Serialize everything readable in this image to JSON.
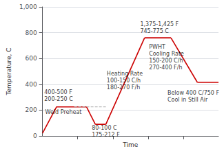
{
  "chart_data": {
    "type": "line",
    "xlabel": "Time",
    "ylabel": "Temperature, C",
    "xlim": [
      0,
      10
    ],
    "xticks": [
      2.0,
      4.0,
      6.0,
      8.0
    ],
    "ylim": [
      0,
      1000
    ],
    "yticks": [
      0,
      200,
      400,
      600,
      800,
      {
        "value": 1000,
        "label": "1,000"
      }
    ],
    "tick_labels": "y",
    "grid": true,
    "series": [
      {
        "color": "#cc0000",
        "x": [
          0,
          0.8,
          1.8,
          2.5
        ],
        "values": [
          20,
          225,
          225,
          225
        ]
      },
      {
        "color": "#cc0000",
        "x": [
          2.5,
          3.0
        ],
        "values": [
          225,
          90
        ]
      },
      {
        "color": "#cc0000",
        "x": [
          3.0,
          3.6
        ],
        "values": [
          90,
          90
        ]
      },
      {
        "color": "#cc0000",
        "x": [
          3.6,
          5.8
        ],
        "values": [
          90,
          760
        ]
      },
      {
        "color": "#cc0000",
        "x": [
          5.8,
          7.3
        ],
        "values": [
          760,
          760
        ]
      },
      {
        "color": "#cc0000",
        "x": [
          7.3,
          8.8
        ],
        "values": [
          760,
          415
        ]
      },
      {
        "color": "#cc0000",
        "x": [
          8.8,
          10.0
        ],
        "values": [
          415,
          415
        ]
      },
      {
        "color": "#aaaaaa",
        "line_style": "dashed",
        "x": [
          1.8,
          3.6
        ],
        "values": [
          225,
          225
        ]
      }
    ],
    "annotations": [
      {
        "text": "400-500 F\n200-250 C",
        "x": 0.1,
        "y": 310
      },
      {
        "text": "Weld Preheat",
        "x": 0.15,
        "y": 185
      },
      {
        "text": "80-100 C\n175-212 F",
        "x": 2.8,
        "y": 35
      },
      {
        "text": "Heating Rate\n100-150 C/h\n180-270 F/h",
        "x": 3.65,
        "y": 430
      },
      {
        "text": "1,375-1,425 F\n745-775 C",
        "x": 5.55,
        "y": 840
      },
      {
        "text": "PWHT",
        "x": 6.05,
        "y": 690
      },
      {
        "text": "Cooling Rate\n150-200 C/h\n270-400 F/h",
        "x": 6.05,
        "y": 580
      },
      {
        "text": "Below 400 C/750 F\nCool in Still Air",
        "x": 7.1,
        "y": 305
      }
    ]
  }
}
